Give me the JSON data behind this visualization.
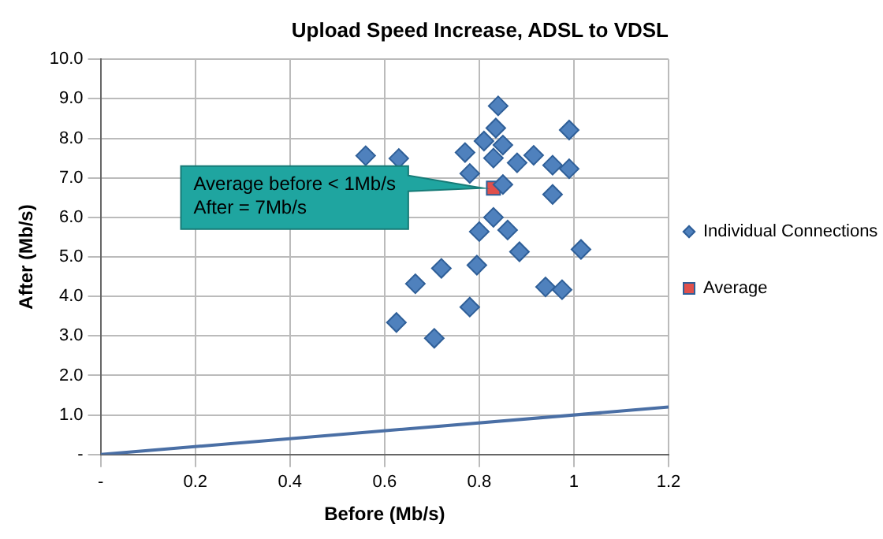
{
  "chart_data": {
    "type": "scatter",
    "title": "Upload Speed Increase, ADSL to VDSL",
    "xlabel": "Before (Mb/s)",
    "ylabel": "After (Mb/s)",
    "series": [
      {
        "name": "Individual Connections",
        "color": "#4f81bd",
        "marker": "diamond",
        "x": [
          0.56,
          0.63,
          0.77,
          0.81,
          0.84,
          0.835,
          0.85,
          0.83,
          0.78,
          0.88,
          0.915,
          0.955,
          0.99,
          0.99,
          0.85,
          0.955,
          0.83,
          0.8,
          0.86,
          0.885,
          1.015,
          0.795,
          0.72,
          0.665,
          0.94,
          0.975,
          0.78,
          0.625,
          0.705
        ],
        "values": [
          7.56,
          7.49,
          7.64,
          7.93,
          8.82,
          8.26,
          7.83,
          7.5,
          7.11,
          7.38,
          7.57,
          7.32,
          8.21,
          7.23,
          6.83,
          6.58,
          6.0,
          5.64,
          5.68,
          5.13,
          5.19,
          4.79,
          4.71,
          4.32,
          4.24,
          4.17,
          3.73,
          3.34,
          2.94
        ]
      },
      {
        "name": "Average",
        "color": "#e0504c",
        "marker": "square",
        "x": [
          0.83
        ],
        "values": [
          6.74
        ]
      },
      {
        "type": "line",
        "color": "#4a6fa5",
        "marker": "none",
        "x": [
          0,
          1.2
        ],
        "values": [
          0,
          1.2
        ]
      }
    ],
    "xlim": [
      0,
      1.2
    ],
    "xticks": [
      {
        "value": 0,
        "label": "-"
      },
      {
        "value": 0.2,
        "label": "0.2"
      },
      {
        "value": 0.4,
        "label": "0.4"
      },
      {
        "value": 0.6,
        "label": "0.6"
      },
      {
        "value": 0.8,
        "label": "0.8"
      },
      {
        "value": 1.0,
        "label": "1"
      },
      {
        "value": 1.2,
        "label": "1.2"
      }
    ],
    "ylim": [
      0,
      10
    ],
    "yticks": [
      {
        "value": 0,
        "label": "-"
      },
      {
        "value": 1,
        "label": "1.0"
      },
      {
        "value": 2,
        "label": "2.0"
      },
      {
        "value": 3,
        "label": "3.0"
      },
      {
        "value": 4,
        "label": "4.0"
      },
      {
        "value": 5,
        "label": "5.0"
      },
      {
        "value": 6,
        "label": "6.0"
      },
      {
        "value": 7,
        "label": "7.0"
      },
      {
        "value": 8,
        "label": "8.0"
      },
      {
        "value": 9,
        "label": "9.0"
      },
      {
        "value": 10,
        "label": "10.0"
      }
    ],
    "annotations": [
      "Average before < 1Mb/s\nAfter = 7Mb/s"
    ],
    "grid": true,
    "legend": "right"
  }
}
